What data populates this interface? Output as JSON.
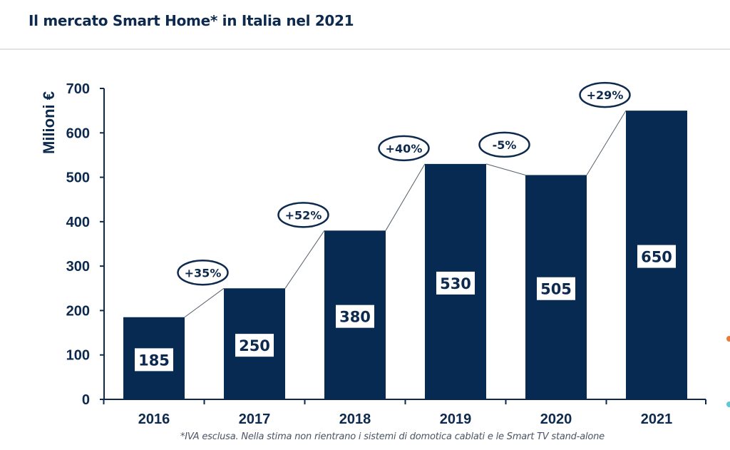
{
  "title": "Il mercato Smart Home* in Italia nel 2021",
  "footnote": "*IVA esclusa. Nella stima non rientrano i sistemi di domotica cablati e le Smart TV stand-alone",
  "colors": {
    "bar": "#062a52",
    "text": "#0d2a4e",
    "accent_orange": "#e87a3a",
    "accent_teal": "#5ec9d3"
  },
  "chart_data": {
    "type": "bar",
    "title": "Il mercato Smart Home* in Italia nel 2021",
    "xlabel": "",
    "ylabel": "Milioni €",
    "ylim": [
      0,
      700
    ],
    "yticks": [
      0,
      100,
      200,
      300,
      400,
      500,
      600,
      700
    ],
    "grid": false,
    "categories": [
      "2016",
      "2017",
      "2018",
      "2019",
      "2020",
      "2021"
    ],
    "values": [
      185,
      250,
      380,
      530,
      505,
      650
    ],
    "data_labels": [
      "185",
      "250",
      "380",
      "530",
      "505",
      "650"
    ],
    "growth_annotations": [
      "+35%",
      "+52%",
      "+40%",
      "-5%",
      "+29%"
    ]
  }
}
